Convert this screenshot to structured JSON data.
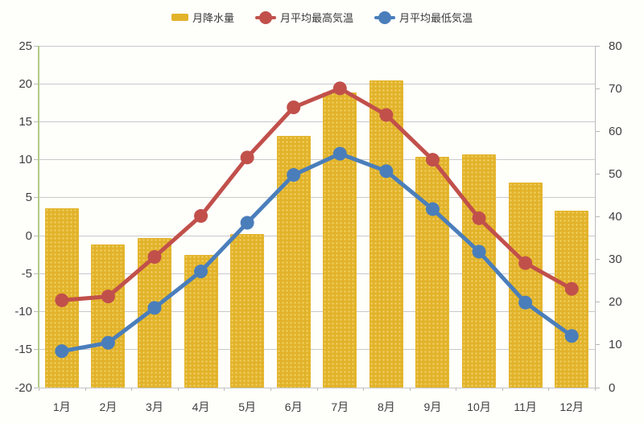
{
  "legend": [
    {
      "label": "月降水量",
      "type": "bar",
      "color": "#e2b32a"
    },
    {
      "label": "月平均最高気温",
      "type": "line",
      "color": "#c1504b"
    },
    {
      "label": "月平均最低気温",
      "type": "line",
      "color": "#4a7ebb"
    }
  ],
  "chart_data": {
    "type": "combo-bar-line",
    "title": "",
    "categories": [
      "1月",
      "2月",
      "3月",
      "4月",
      "5月",
      "6月",
      "7月",
      "8月",
      "9月",
      "10月",
      "11月",
      "12月"
    ],
    "series": [
      {
        "name": "月降水量",
        "type": "bar",
        "axis": "right",
        "color": "#e2b32a",
        "values": [
          42,
          33.5,
          35,
          31,
          36,
          59,
          69,
          72,
          54,
          54.5,
          48,
          41.5
        ]
      },
      {
        "name": "月平均最高気温",
        "type": "line",
        "axis": "left",
        "color": "#c1504b",
        "values": [
          -8.5,
          -8.0,
          -2.8,
          2.6,
          10.3,
          16.9,
          19.4,
          15.9,
          10.0,
          2.3,
          -3.6,
          -7.0
        ]
      },
      {
        "name": "月平均最低気温",
        "type": "line",
        "axis": "left",
        "color": "#4a7ebb",
        "values": [
          -15.2,
          -14.1,
          -9.5,
          -4.7,
          1.7,
          8.0,
          10.8,
          8.5,
          3.5,
          -2.1,
          -8.8,
          -13.2
        ]
      }
    ],
    "axes": {
      "left": {
        "min": -20,
        "max": 25,
        "step": 5,
        "tick_labels": [
          "25",
          "20",
          "15",
          "10",
          "5",
          "0",
          "-5",
          "-10",
          "-15",
          "-20"
        ]
      },
      "right": {
        "min": 0,
        "max": 80,
        "step": 10,
        "tick_labels": [
          "80",
          "70",
          "60",
          "50",
          "40",
          "30",
          "20",
          "10",
          "0"
        ]
      }
    },
    "grid": true,
    "legend_position": "top",
    "colors": {
      "gridline": "#c9c9c9",
      "axis_left_line": "#b2cc85",
      "axis_right_line": "#bdbdbd",
      "text": "#3f3f3f"
    }
  }
}
